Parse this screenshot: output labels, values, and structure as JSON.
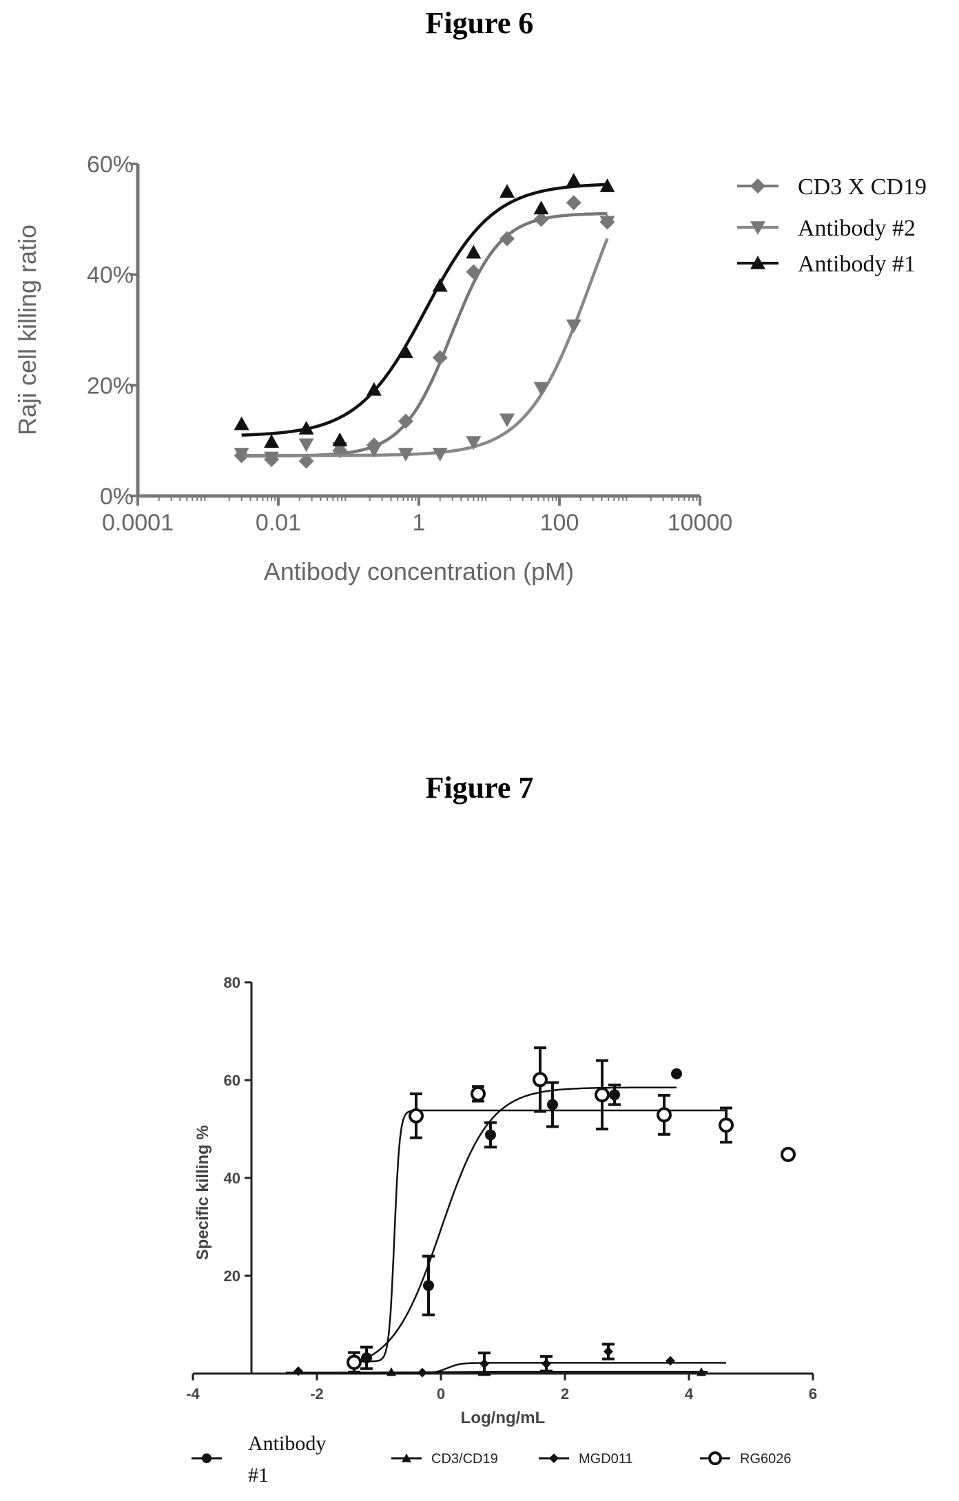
{
  "figure6": {
    "title": "Figure 6",
    "chart_data": {
      "type": "scatter",
      "xscale": "log",
      "xlabel": "Antibody concentration (pM)",
      "ylabel": "Raji cell killing ratio",
      "xlim": [
        0.0001,
        10000
      ],
      "ylim": [
        0,
        60
      ],
      "x_ticks": [
        "0.0001",
        "0.01",
        "1",
        "100",
        "10000"
      ],
      "y_ticks": [
        "0%",
        "20%",
        "40%",
        "60%"
      ],
      "legend_position": "right",
      "series": [
        {
          "name": "CD3 X CD19",
          "marker": "diamond",
          "color": "#777777",
          "x": [
            0.003,
            0.008,
            0.025,
            0.075,
            0.23,
            0.65,
            2.0,
            6.0,
            18,
            55,
            160,
            480
          ],
          "y": [
            7.3,
            6.6,
            6.3,
            8.2,
            9.2,
            13.5,
            25,
            40.5,
            46.5,
            50,
            53,
            49.5
          ],
          "fit": {
            "bottom": 7.2,
            "top": 51.1,
            "ec50": 2.9,
            "hill": 1.25
          }
        },
        {
          "name": "Antibody #2",
          "marker": "triangle-down",
          "color": "#777777",
          "x": [
            0.003,
            0.008,
            0.025,
            0.075,
            0.23,
            0.65,
            2.0,
            6.0,
            18,
            55,
            160,
            480
          ],
          "y": [
            7.6,
            6.9,
            9.3,
            8.6,
            8.3,
            7.6,
            7.6,
            9.7,
            13.8,
            19.5,
            30.8,
            49.5
          ],
          "fit": {
            "bottom": 7.3,
            "top": 70,
            "ec50": 280,
            "hill": 0.95
          }
        },
        {
          "name": "Antibody #1",
          "marker": "triangle-up",
          "color": "#111111",
          "x": [
            0.003,
            0.008,
            0.025,
            0.075,
            0.23,
            0.65,
            2.0,
            6.0,
            18,
            55,
            160,
            480
          ],
          "y": [
            13,
            9.8,
            12.2,
            10.1,
            19.2,
            26,
            38,
            44,
            55,
            52,
            57,
            56
          ],
          "fit": {
            "bottom": 10.8,
            "top": 56.5,
            "ec50": 1.25,
            "hill": 0.9
          }
        }
      ]
    }
  },
  "figure7": {
    "title": "Figure 7",
    "chart_data": {
      "type": "scatter",
      "xlabel": "Log/ng/mL",
      "ylabel": "Specific killing %",
      "xlim": [
        -4,
        6
      ],
      "ylim": [
        0,
        80
      ],
      "x_ticks": [
        "-4",
        "-2",
        "0",
        "2",
        "4",
        "6"
      ],
      "y_ticks": [
        "20",
        "40",
        "60",
        "80"
      ],
      "legend_position": "bottom",
      "series": [
        {
          "name": "Antibody #1",
          "marker": "circle-filled",
          "color": "#111111",
          "x": [
            -1.2,
            -0.2,
            0.8,
            1.8,
            2.8,
            3.8
          ],
          "y": [
            3.2,
            18,
            48.8,
            55,
            57,
            61.3
          ],
          "err": [
            2.2,
            6,
            2.5,
            4.5,
            2,
            0
          ],
          "fit": {
            "bottom": 0.5,
            "top": 58.5,
            "ec50": 0.0,
            "hill": 1.1,
            "xrange": [
              -1.5,
              3.8
            ]
          }
        },
        {
          "name": "CD3/CD19",
          "marker": "triangle-filled",
          "color": "#111111",
          "x": [
            -0.8,
            4.2
          ],
          "y": [
            0.3,
            0.3
          ],
          "err": [
            0,
            0
          ],
          "fit": {
            "bottom": 0.2,
            "top": 0.4,
            "ec50": 0.0,
            "hill": 1.0,
            "xrange": [
              -2.5,
              4.3
            ]
          }
        },
        {
          "name": "MGD011",
          "marker": "diamond-filled",
          "color": "#111111",
          "x": [
            -2.3,
            -0.3,
            0.7,
            1.7,
            2.7,
            3.7
          ],
          "y": [
            0.5,
            0.2,
            2.0,
            2.0,
            4.5,
            2.6
          ],
          "err": [
            0,
            0,
            2.2,
            1.5,
            1.5,
            0
          ],
          "fit": {
            "bottom": 0.0,
            "top": 2.2,
            "ec50": 0.1,
            "hill": 4.0,
            "xrange": [
              -1.5,
              4.6
            ]
          }
        },
        {
          "name": "RG6026",
          "marker": "circle-open",
          "color": "#111111",
          "x": [
            -1.4,
            -0.4,
            0.6,
            1.6,
            2.6,
            3.6,
            4.6,
            5.6
          ],
          "y": [
            2.3,
            52.7,
            57.2,
            60.1,
            57.0,
            52.9,
            50.8,
            44.8
          ],
          "err": [
            2,
            4.5,
            1.5,
            6.5,
            7,
            4,
            3.5,
            0
          ],
          "fit": {
            "bottom": 2.5,
            "top": 53.8,
            "ec50": -0.75,
            "hill": 10,
            "xrange": [
              -1.5,
              4.6
            ]
          }
        }
      ]
    }
  }
}
